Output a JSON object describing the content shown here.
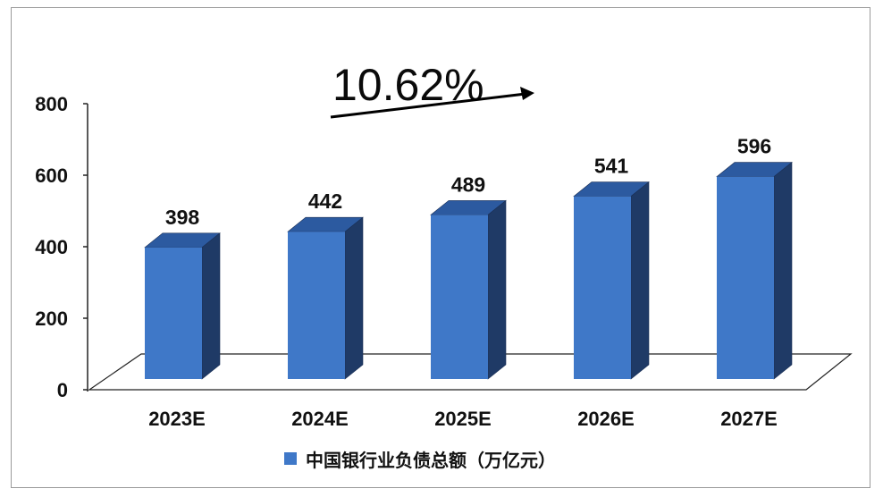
{
  "chart_data": {
    "type": "bar",
    "title": "",
    "xlabel": "",
    "ylabel": "",
    "categories": [
      "2023E",
      "2024E",
      "2025E",
      "2026E",
      "2027E"
    ],
    "series": [
      {
        "name": "中国银行业负债总额（万亿元）",
        "values": [
          398,
          442,
          489,
          541,
          596
        ]
      }
    ],
    "y_ticks": [
      "0",
      "200",
      "400",
      "600",
      "800"
    ],
    "ylim": [
      0,
      800
    ],
    "annotation": "10.62%",
    "grid": false,
    "legend_position": "bottom",
    "bar_3d": true
  },
  "colors": {
    "bar_front": "#3f78c8",
    "bar_side": "#1f3a66",
    "bar_top": "#2c5aa0",
    "floor": "#ffffff"
  }
}
